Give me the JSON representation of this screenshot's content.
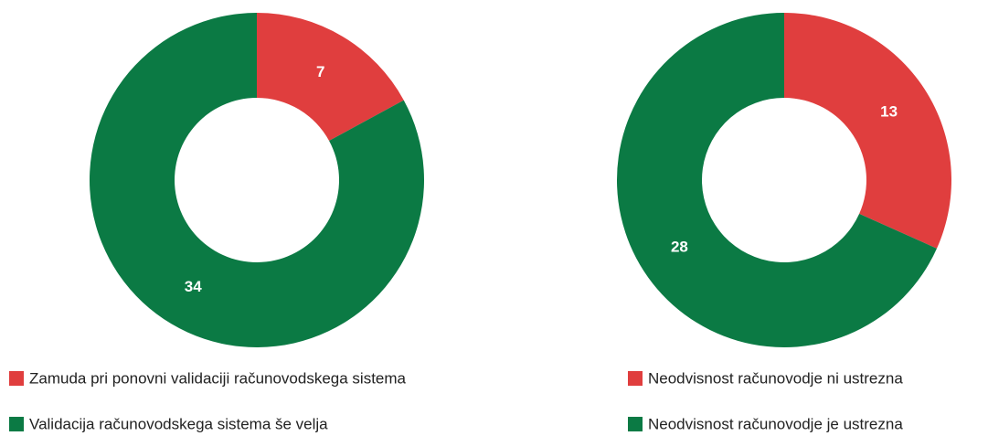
{
  "chart_data": [
    {
      "type": "donut",
      "categories": [
        "Zamuda pri ponovni validaciji računovodskega sistema",
        "Validacija računovodskega sistema še velja"
      ],
      "values": [
        7,
        34
      ],
      "colors": [
        "#e03e3e",
        "#0b7a44"
      ]
    },
    {
      "type": "donut",
      "categories": [
        "Neodvisnost računovodje ni ustrezna",
        "Neodvisnost računovodje je ustrezna"
      ],
      "values": [
        13,
        28
      ],
      "colors": [
        "#e03e3e",
        "#0b7a44"
      ]
    }
  ]
}
